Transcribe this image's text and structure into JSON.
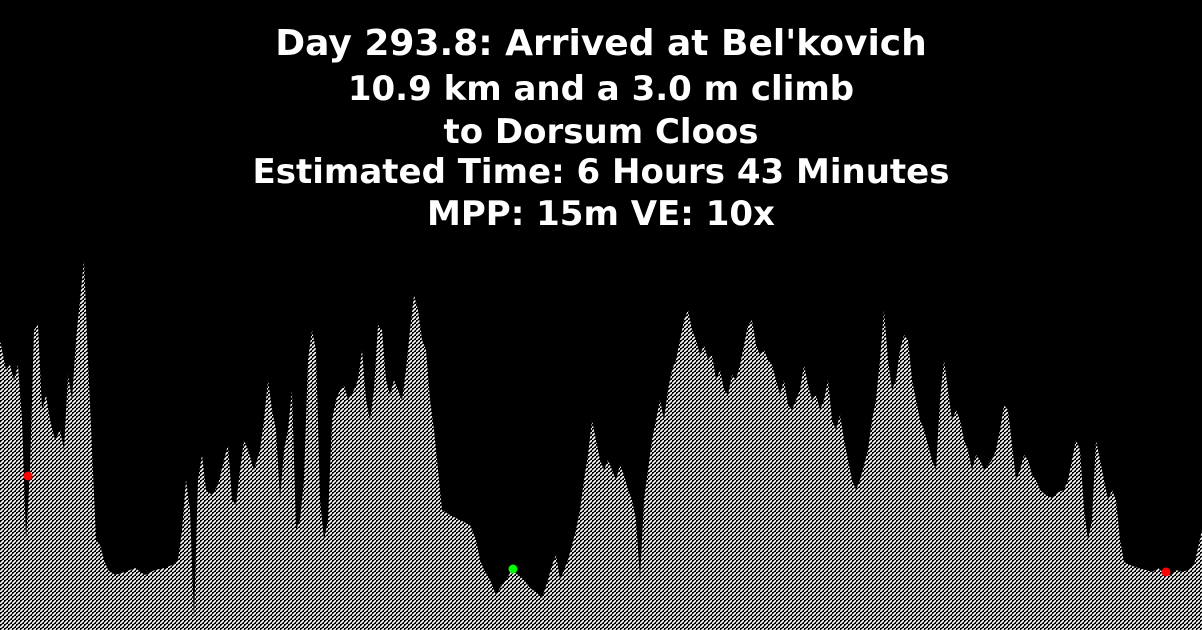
{
  "title": {
    "line1": "Day 293.8: Arrived at Bel'kovich",
    "line2": "10.9 km and a 3.0 m climb",
    "line3": "to Dorsum Cloos",
    "line4": "Estimated Time: 6 Hours 43 Minutes",
    "line5": "MPP: 15m VE: 10x"
  },
  "colors": {
    "background": "#000000",
    "terrain": "#ffffff",
    "current_marker": "#00ff00",
    "endpoint_marker": "#ff0000"
  }
}
